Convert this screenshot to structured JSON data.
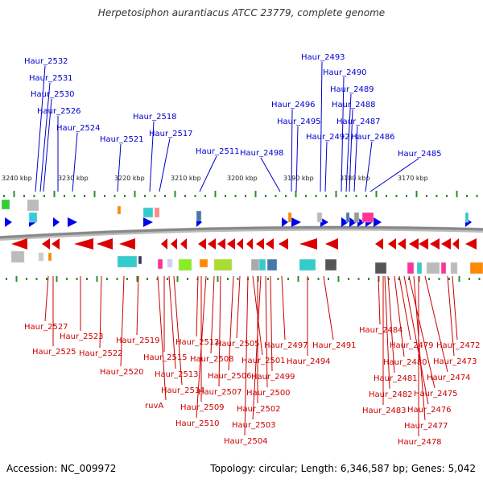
{
  "title": "Herpetosiphon aurantiacus ATCC 23779, complete genome",
  "footer": {
    "accession": "Accession: NC_009972",
    "topology": "Topology: circular; Length: 6,346,587 bp; Genes: 5,042"
  },
  "colors": {
    "forward": "#0000ee",
    "reverse": "#dd0000",
    "labelForward": "#0000cc",
    "labelReverse": "#cc0000",
    "tick": "#2e8b2e",
    "backbone": "#888888"
  },
  "scale_labels": [
    "3240 kbp",
    "3230 kbp",
    "3220 kbp",
    "3210 kbp",
    "3200 kbp",
    "3190 kbp",
    "3180 kbp",
    "3170 kbp"
  ],
  "forward_genes": [
    "Haur_2532",
    "Haur_2531",
    "Haur_2530",
    "Haur_2526",
    "Haur_2524",
    "Haur_2521",
    "Haur_2518",
    "Haur_2517",
    "Haur_2511",
    "Haur_2498",
    "Haur_2496",
    "Haur_2495",
    "Haur_2493",
    "Haur_2492",
    "Haur_2490",
    "Haur_2489",
    "Haur_2488",
    "Haur_2487",
    "Haur_2486",
    "Haur_2485"
  ],
  "reverse_genes": [
    "Haur_2527",
    "Haur_2525",
    "Haur_2523",
    "Haur_2522",
    "Haur_2520",
    "Haur_2519",
    "Haur_2515",
    "Haur_2513",
    "Haur_2514",
    "ruvA",
    "Haur_2512",
    "Haur_2509",
    "Haur_2510",
    "Haur_2508",
    "Haur_2507",
    "Haur_2506",
    "Haur_2505",
    "Haur_2501",
    "Haur_2502",
    "Haur_2503",
    "Haur_2504",
    "Haur_2500",
    "Haur_2499",
    "Haur_2497",
    "Haur_2494",
    "Haur_2491",
    "Haur_2484",
    "Haur_2482",
    "Haur_2483",
    "Haur_2481",
    "Haur_2480",
    "Haur_2479",
    "Haur_2476",
    "Haur_2475",
    "Haur_2477",
    "Haur_2478",
    "Haur_2474",
    "Haur_2473",
    "Haur_2472"
  ]
}
